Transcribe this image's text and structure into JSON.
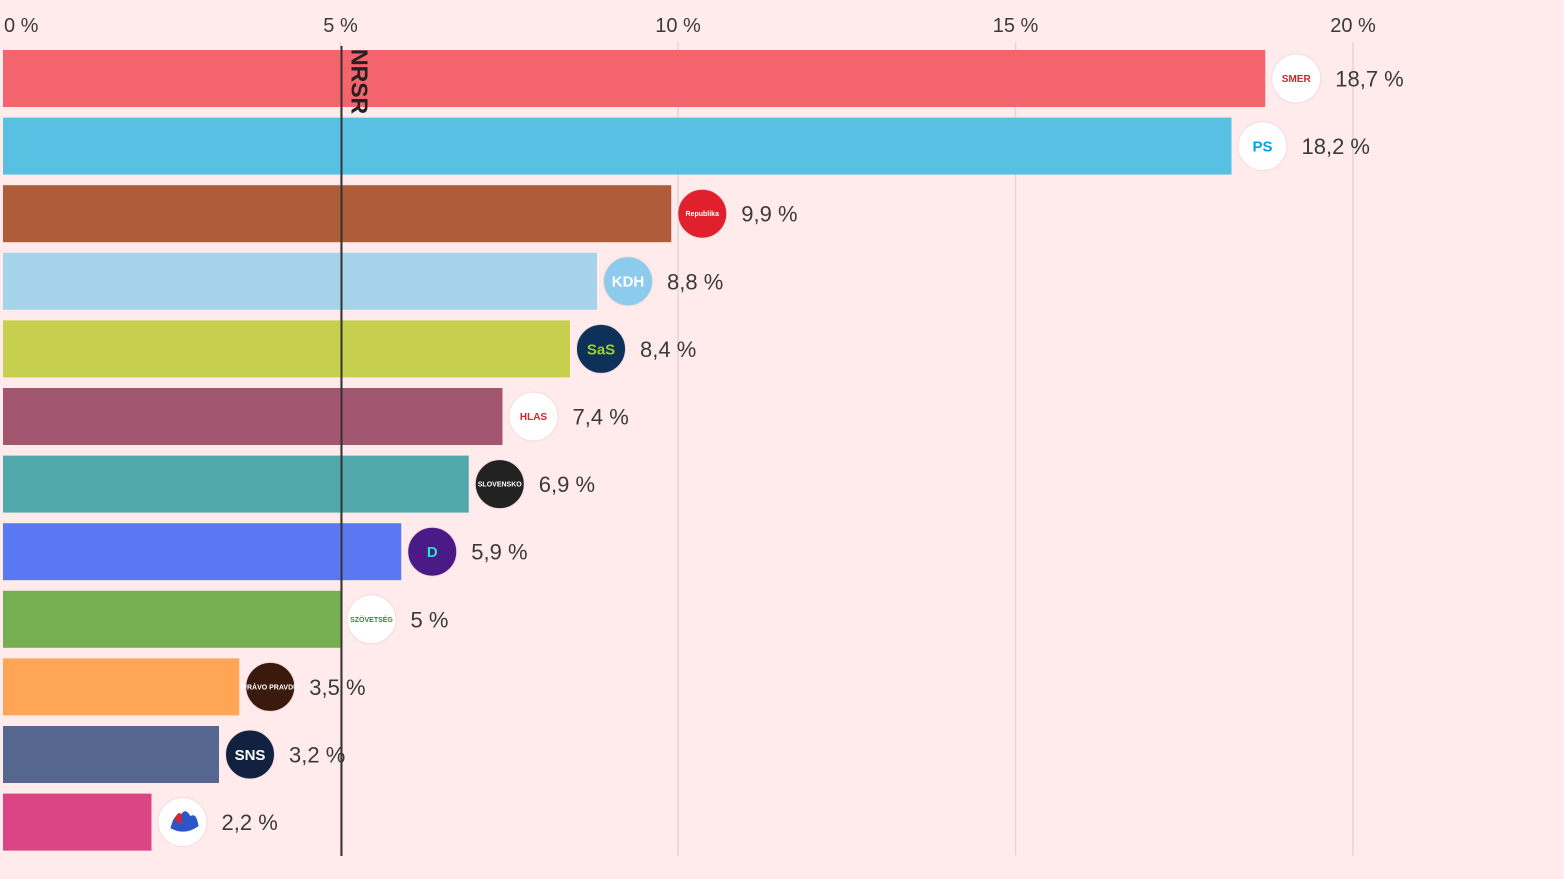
{
  "chart_data": {
    "type": "bar",
    "orientation": "horizontal",
    "xlim": [
      0,
      22.5
    ],
    "x_ticks": [
      0,
      5,
      10,
      15,
      20
    ],
    "x_tick_labels": [
      "0 %",
      "5 %",
      "10 %",
      "15 %",
      "20 %"
    ],
    "grid": true,
    "threshold": {
      "value": 5,
      "label": "NRSR"
    },
    "categories": [
      "Smer",
      "PS",
      "Republika",
      "KDH",
      "SaS",
      "Hlas",
      "Hnutie Slovensko",
      "Demokrati",
      "Szövetség",
      "Právo a pravdu",
      "SNS",
      "Hnutie"
    ],
    "values": [
      18.7,
      18.2,
      9.9,
      8.8,
      8.4,
      7.4,
      6.9,
      5.9,
      5.0,
      3.5,
      3.2,
      2.2
    ],
    "value_labels": [
      "18,7 %",
      "18,2 %",
      "9,9 %",
      "8,8 %",
      "8,4 %",
      "7,4 %",
      "6,9 %",
      "5,9 %",
      "5 %",
      "3,5 %",
      "3,2 %",
      "2,2 %"
    ],
    "colors": [
      "#f4646c",
      "#58c0e2",
      "#ae5c39",
      "#a4d3ea",
      "#c7cf4e",
      "#a2566f",
      "#52a9ac",
      "#5a78f1",
      "#75af51",
      "#ffa556",
      "#55678f",
      "#db4485"
    ],
    "logos": [
      {
        "icon": "smer-rose-logo-icon",
        "text": "SMER",
        "bg": "#ffffff",
        "fg": "#c8272e"
      },
      {
        "icon": "ps-logo-icon",
        "text": "PS",
        "bg": "#ffffff",
        "fg": "#00a3e8"
      },
      {
        "icon": "republika-logo-icon",
        "text": "Republika",
        "bg": "#e0202d",
        "fg": "#ffffff"
      },
      {
        "icon": "kdh-logo-icon",
        "text": "KDH",
        "bg": "#8ccbec",
        "fg": "#ffffff"
      },
      {
        "icon": "sas-logo-icon",
        "text": "SaS",
        "bg": "#0d3159",
        "fg": "#9bd22b"
      },
      {
        "icon": "hlas-logo-icon",
        "text": "HLAS",
        "bg": "#ffffff",
        "fg": "#e0202d"
      },
      {
        "icon": "hnutie-slovensko-logo-icon",
        "text": "SLOVENSKO",
        "bg": "#222222",
        "fg": "#ffffff"
      },
      {
        "icon": "demokrati-logo-icon",
        "text": "D",
        "bg": "#4a1b86",
        "fg": "#2ee0d0"
      },
      {
        "icon": "szovetseg-logo-icon",
        "text": "SZÖVETSÉG",
        "bg": "#ffffff",
        "fg": "#2c8a3c"
      },
      {
        "icon": "pravo-a-pravdu-logo-icon",
        "text": "PRÁVO PRAVDU",
        "bg": "#3a1a0c",
        "fg": "#ffffff"
      },
      {
        "icon": "sns-logo-icon",
        "text": "SNS",
        "bg": "#12213f",
        "fg": "#ffffff"
      },
      {
        "icon": "hands-logo-icon",
        "text": "",
        "bg": "#ffffff",
        "fg": "#2a56c6"
      }
    ]
  }
}
